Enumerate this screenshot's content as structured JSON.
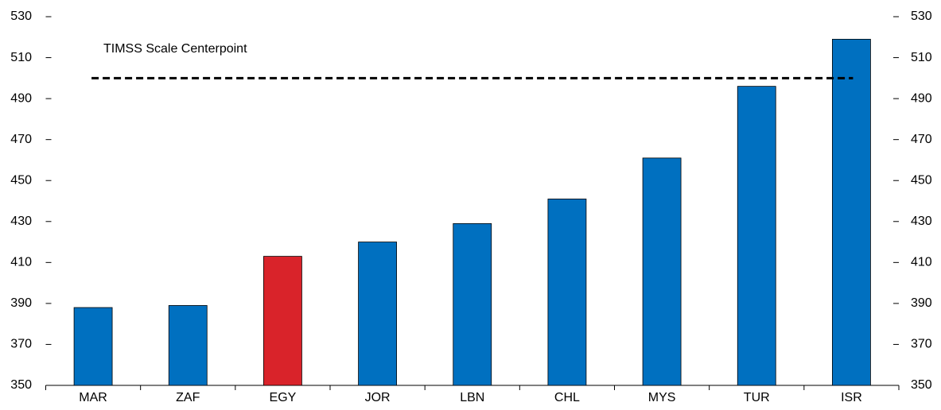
{
  "chart_data": {
    "type": "bar",
    "categories": [
      "MAR",
      "ZAF",
      "EGY",
      "JOR",
      "LBN",
      "CHL",
      "MYS",
      "TUR",
      "ISR"
    ],
    "values": [
      388,
      389,
      413,
      420,
      429,
      441,
      461,
      496,
      519
    ],
    "colors": [
      "#0070c0",
      "#0070c0",
      "#d9232a",
      "#0070c0",
      "#0070c0",
      "#0070c0",
      "#0070c0",
      "#0070c0",
      "#0070c0"
    ],
    "ylim": [
      350,
      530
    ],
    "yticks": [
      350,
      370,
      390,
      410,
      430,
      450,
      470,
      490,
      510,
      530
    ],
    "y2lim": [
      350,
      530
    ],
    "y2ticks": [
      350,
      370,
      390,
      410,
      430,
      450,
      470,
      490,
      510,
      530
    ],
    "reference_line": {
      "value": 500,
      "label": "TIMSS Scale Centerpoint"
    },
    "grid": false
  }
}
